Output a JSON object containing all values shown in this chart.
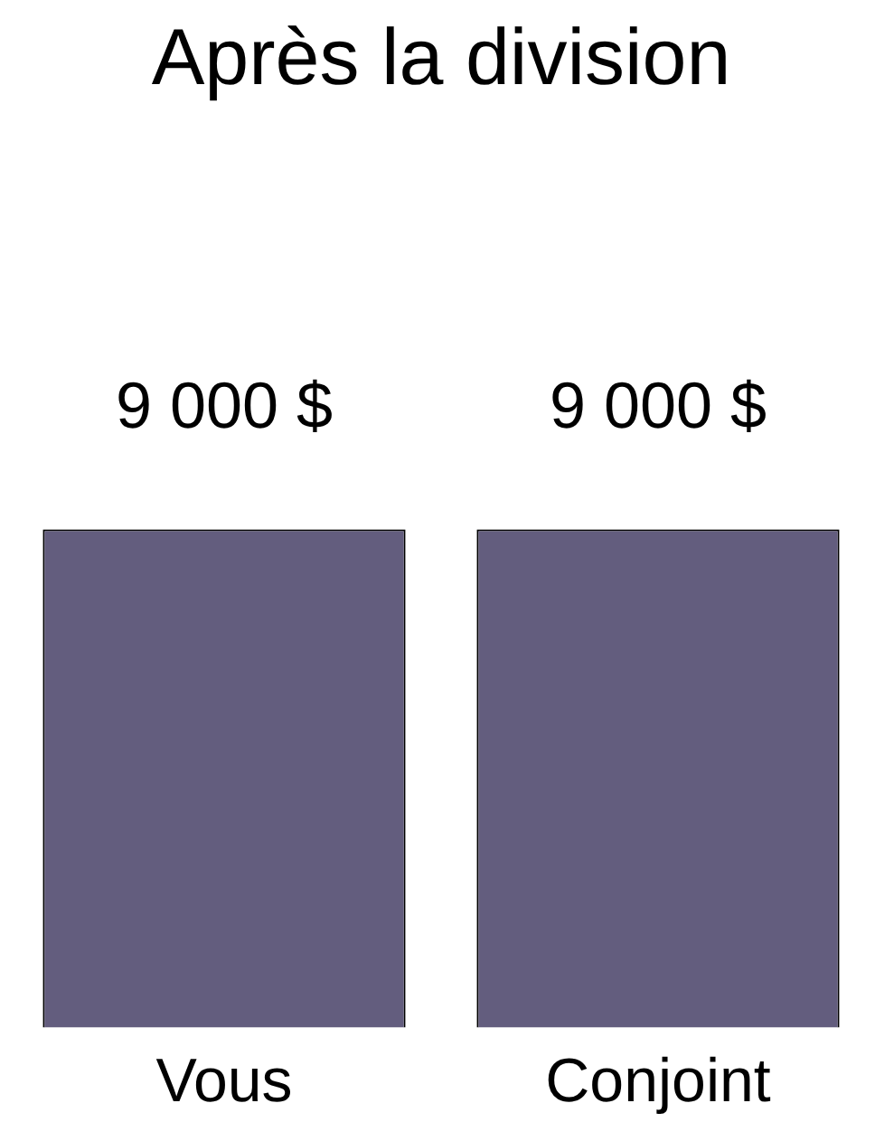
{
  "chart_data": {
    "type": "bar",
    "title": "Après la division",
    "categories": [
      "Vous",
      "Conjoint"
    ],
    "values": [
      9000,
      9000
    ],
    "value_labels": [
      "9 000 $",
      "9 000 $"
    ],
    "color": "#635d7e"
  }
}
